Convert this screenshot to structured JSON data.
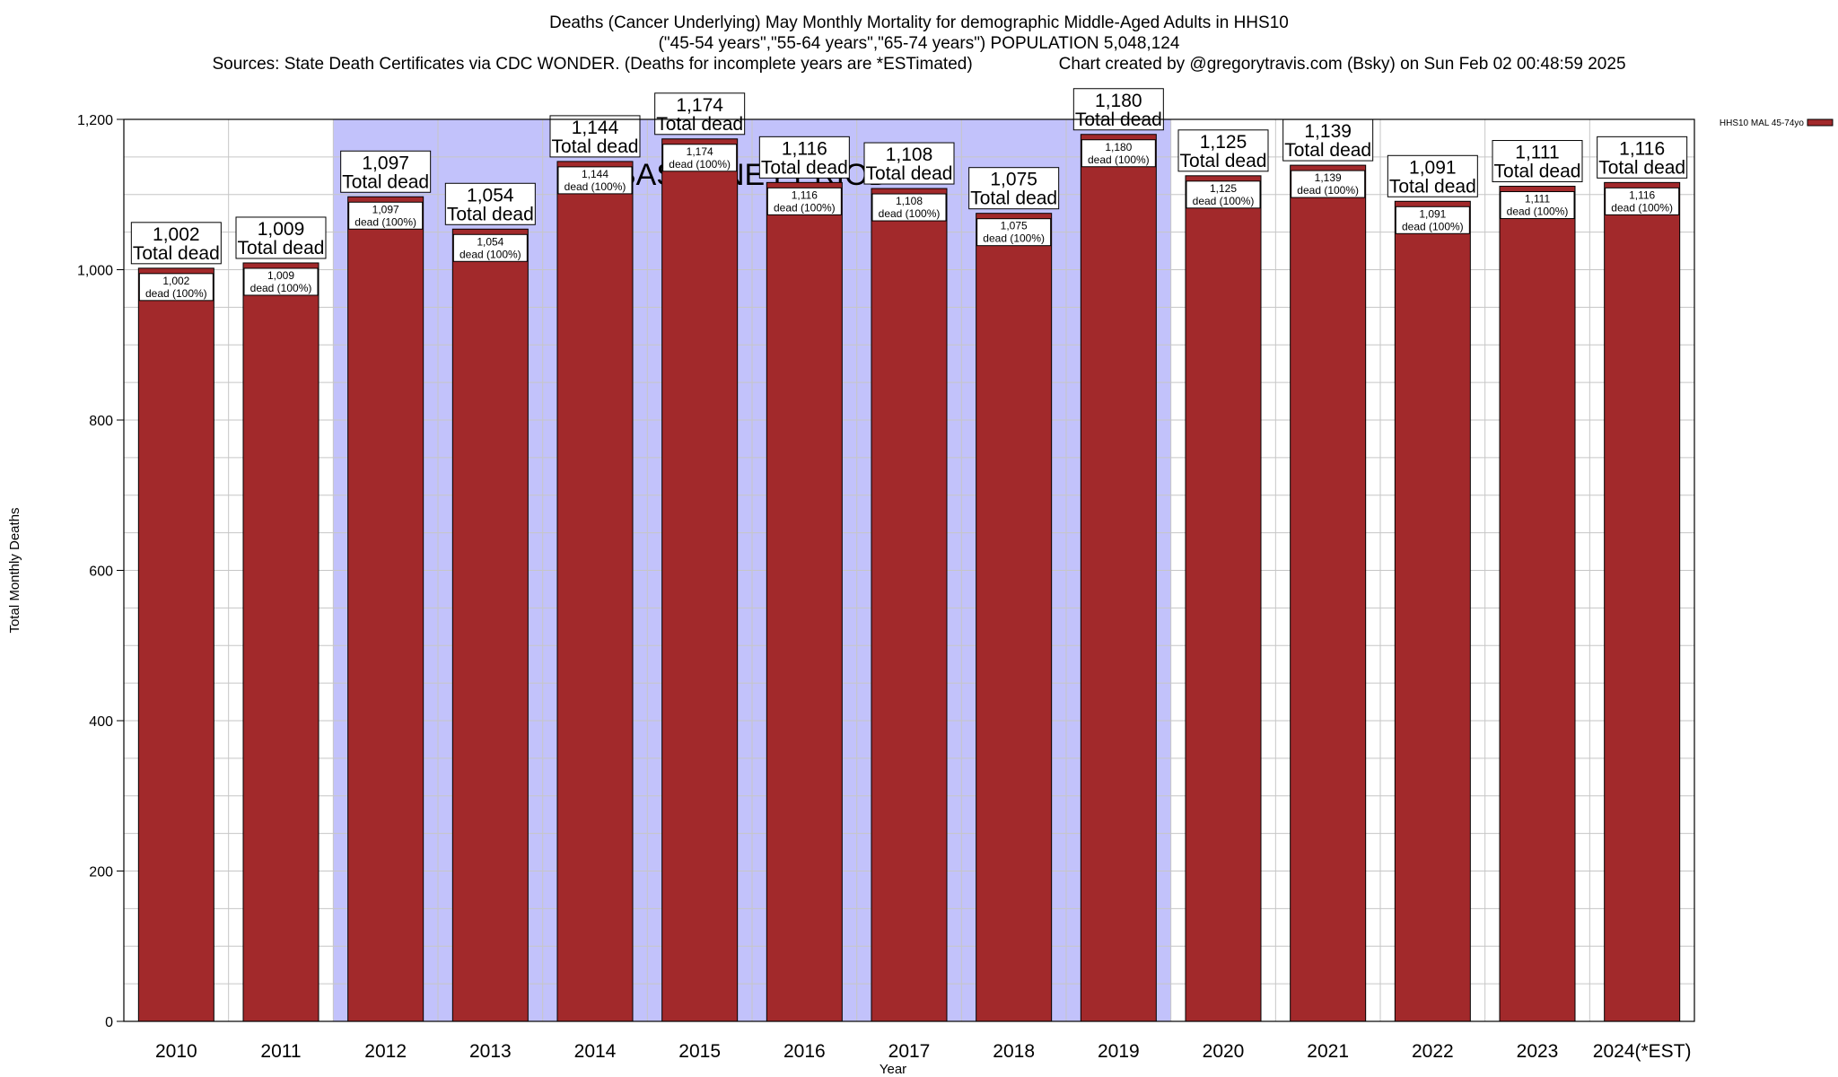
{
  "header": {
    "line1": "Deaths (Cancer Underlying) May Monthly Mortality for demographic Middle-Aged Adults in HHS10",
    "line2": "(\"45-54 years\",\"55-64 years\",\"65-74 years\") POPULATION 5,048,124",
    "line3_left": "Sources: State Death Certificates via CDC WONDER. (Deaths for incomplete years are *ESTimated)",
    "line3_right": "Chart created by @gregorytravis.com (Bsky) on Sun Feb 02 00:48:59 2025"
  },
  "chart_data": {
    "type": "bar",
    "xlabel": "Year",
    "ylabel": "Total Monthly Deaths",
    "ylim": [
      0,
      1200
    ],
    "y_ticks": [
      0,
      200,
      400,
      600,
      800,
      1000,
      1200
    ],
    "y_tick_labels": [
      "0",
      "200",
      "400",
      "600",
      "800",
      "1,000",
      "1,200"
    ],
    "grid": true,
    "categories": [
      "2010",
      "2011",
      "2012",
      "2013",
      "2014",
      "2015",
      "2016",
      "2017",
      "2018",
      "2019",
      "2020",
      "2021",
      "2022",
      "2023",
      "2024(*EST)"
    ],
    "series": [
      {
        "name": "HHS10 MAL 45-74yo",
        "color": "#a2292b",
        "values": [
          1002,
          1009,
          1097,
          1054,
          1144,
          1174,
          1116,
          1108,
          1075,
          1180,
          1125,
          1139,
          1091,
          1111,
          1116
        ]
      }
    ],
    "value_labels": [
      "1,002",
      "1,009",
      "1,097",
      "1,054",
      "1,144",
      "1,174",
      "1,116",
      "1,108",
      "1,075",
      "1,180",
      "1,125",
      "1,139",
      "1,091",
      "1,111",
      "1,116"
    ],
    "total_label_text": "Total dead",
    "inner_label_text": "dead (100%)",
    "baseline": {
      "label": "BASELINE PERIOD",
      "start_category": "2012",
      "end_category": "2019",
      "color": "#c2c2fb"
    },
    "legend": {
      "placement": "top-right",
      "label": "HHS10 MAL 45-74yo"
    }
  }
}
